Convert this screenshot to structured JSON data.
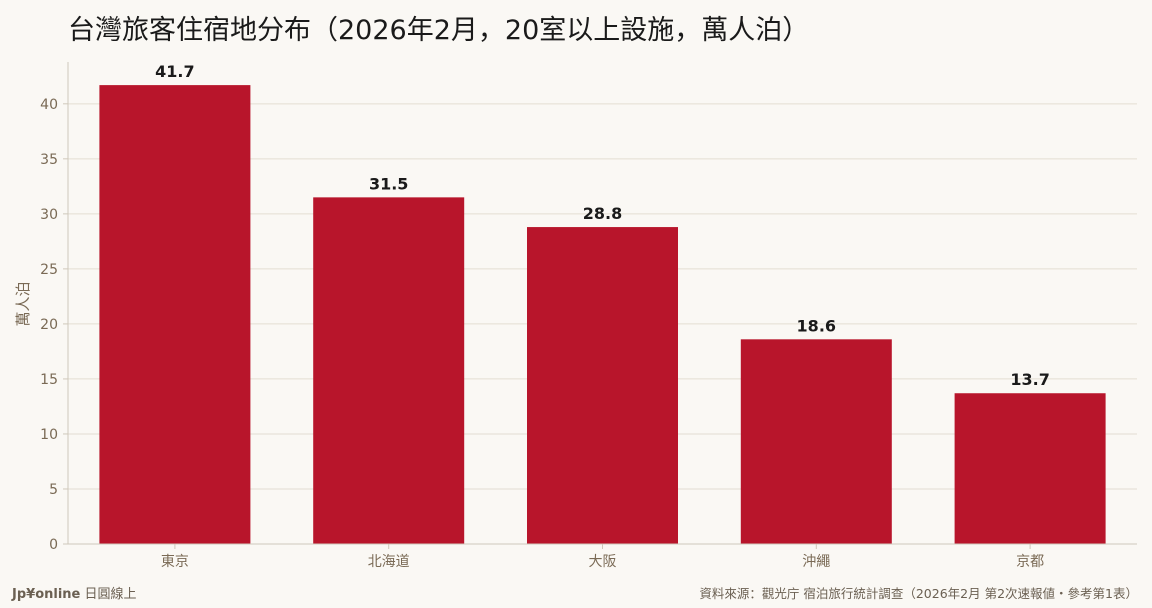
{
  "title": "台灣旅客住宿地分布（2026年2月，20室以上設施，萬人泊）",
  "footer": {
    "brand": "Jp¥online",
    "brand_suffix": "日圓線上",
    "source": "資料來源：觀光庁 宿泊旅行統計調查（2026年2月 第2次速報値・參考第1表）"
  },
  "colors": {
    "bar": "#b8152b",
    "grid": "#e3ddd2",
    "axis": "#cfc8bb",
    "tick_text": "#7a6a55",
    "label_text": "#1a1a1a"
  },
  "chart_data": {
    "type": "bar",
    "title": "台灣旅客住宿地分布（2026年2月，20室以上設施，萬人泊）",
    "xlabel": "",
    "ylabel": "萬人泊",
    "categories": [
      "東京",
      "北海道",
      "大阪",
      "沖繩",
      "京都"
    ],
    "values": [
      41.7,
      31.5,
      28.8,
      18.6,
      13.7
    ],
    "data_labels": [
      "41.7",
      "31.5",
      "28.8",
      "18.6",
      "13.7"
    ],
    "ylim": [
      0,
      43.8
    ],
    "yticks": [
      0,
      5,
      10,
      15,
      20,
      25,
      30,
      35,
      40
    ],
    "grid": true,
    "legend": "none"
  }
}
